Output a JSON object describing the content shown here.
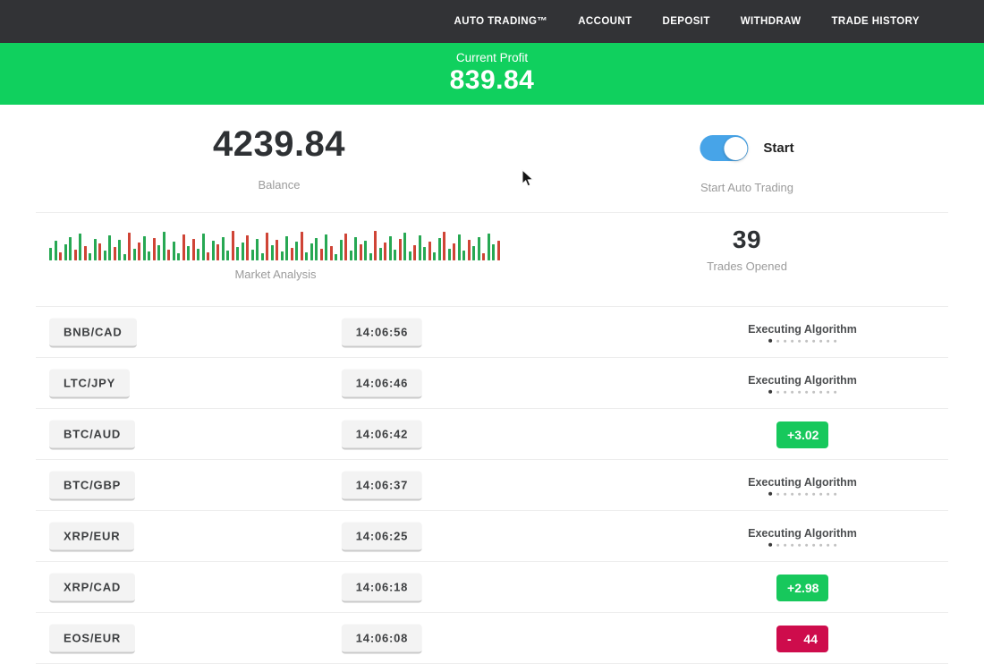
{
  "nav": {
    "items": [
      {
        "id": "auto-trading",
        "label": "AUTO TRADING™"
      },
      {
        "id": "account",
        "label": "ACCOUNT"
      },
      {
        "id": "deposit",
        "label": "DEPOSIT"
      },
      {
        "id": "withdraw",
        "label": "WITHDRAW"
      },
      {
        "id": "trade-history",
        "label": "TRADE HISTORY"
      }
    ]
  },
  "profit_banner": {
    "label": "Current Profit",
    "value": "839.84"
  },
  "stats": {
    "balance": {
      "value": "4239.84",
      "label": "Balance"
    },
    "auto_trading": {
      "toggle_label": "Start",
      "label": "Start Auto Trading",
      "enabled": true
    },
    "market_analysis": {
      "label": "Market Analysis"
    },
    "trades_opened": {
      "value": "39",
      "label": "Trades Opened"
    }
  },
  "chart_data": {
    "type": "bar",
    "title": "Market Analysis",
    "ylabel": "",
    "xlabel": "",
    "values": [
      14,
      22,
      9,
      18,
      26,
      12,
      30,
      16,
      8,
      24,
      19,
      11,
      28,
      15,
      23,
      7,
      31,
      13,
      20,
      27,
      10,
      25,
      17,
      32,
      12,
      21,
      8,
      29,
      16,
      24,
      13,
      30,
      9,
      22,
      18,
      26,
      11,
      33,
      15,
      20,
      28,
      12,
      24,
      8,
      31,
      17,
      23,
      10,
      27,
      14,
      21,
      32,
      9,
      19,
      25,
      13,
      29,
      16,
      7,
      23,
      30,
      11,
      26,
      18,
      22,
      8,
      33,
      14,
      20,
      27,
      12,
      24,
      31,
      10,
      17,
      28,
      15,
      21,
      9,
      25,
      32,
      13,
      19,
      29,
      11,
      23,
      16,
      26,
      8,
      30,
      18,
      22
    ],
    "colors": [
      "g",
      "g",
      "r",
      "g",
      "g",
      "r",
      "g",
      "r",
      "g",
      "g",
      "r",
      "g",
      "g",
      "r",
      "g",
      "g",
      "r",
      "g",
      "r",
      "g",
      "g",
      "r",
      "g",
      "g",
      "r",
      "g",
      "g",
      "r",
      "g",
      "r",
      "g",
      "g",
      "r",
      "g",
      "r",
      "g",
      "g",
      "r",
      "g",
      "g",
      "r",
      "g",
      "g",
      "g",
      "r",
      "g",
      "r",
      "g",
      "g",
      "r",
      "g",
      "r",
      "g",
      "g",
      "g",
      "r",
      "g",
      "r",
      "g",
      "g",
      "r",
      "g",
      "g",
      "r",
      "g",
      "g",
      "r",
      "g",
      "r",
      "g",
      "g",
      "r",
      "g",
      "g",
      "r",
      "g",
      "g",
      "r",
      "g",
      "g",
      "r",
      "g",
      "r",
      "g",
      "g",
      "r",
      "g",
      "g",
      "r",
      "g",
      "g",
      "r"
    ]
  },
  "trades": [
    {
      "pair": "BNB/CAD",
      "time": "14:06:56",
      "status": "executing",
      "status_label": "Executing Algorithm"
    },
    {
      "pair": "LTC/JPY",
      "time": "14:06:46",
      "status": "executing",
      "status_label": "Executing Algorithm"
    },
    {
      "pair": "BTC/AUD",
      "time": "14:06:42",
      "status": "profit",
      "result_sign": "+",
      "result_value": "3.02"
    },
    {
      "pair": "BTC/GBP",
      "time": "14:06:37",
      "status": "executing",
      "status_label": "Executing Algorithm"
    },
    {
      "pair": "XRP/EUR",
      "time": "14:06:25",
      "status": "executing",
      "status_label": "Executing Algorithm"
    },
    {
      "pair": "XRP/CAD",
      "time": "14:06:18",
      "status": "profit",
      "result_sign": "+",
      "result_value": "2.98"
    },
    {
      "pair": "EOS/EUR",
      "time": "14:06:08",
      "status": "loss",
      "result_sign": "-",
      "result_value": "44"
    }
  ],
  "ui": {
    "executing_dots": 10
  },
  "colors": {
    "nav_bg": "#323336",
    "banner_green": "#10d05e",
    "toggle_blue": "#47a4e8",
    "profit_green": "#17c85c",
    "loss_red": "#ce0c4c",
    "chart_green": "#27a853",
    "chart_red": "#cf4436"
  }
}
